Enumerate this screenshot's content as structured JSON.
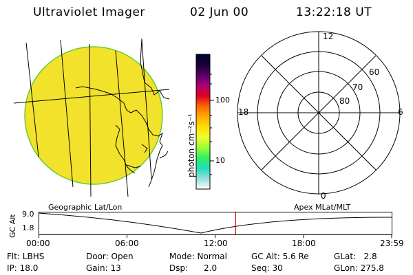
{
  "header": {
    "instrument": "Ultraviolet Imager",
    "date": "02 Jun 00",
    "time": "13:22:18 UT"
  },
  "colorbar": {
    "unit_label": "photon cm⁻²s⁻¹",
    "ticks": [
      "100",
      "10"
    ],
    "gradient": [
      "#000033",
      "#1a0033",
      "#550066",
      "#aa0077",
      "#dd0022",
      "#ff6600",
      "#ffaa00",
      "#ffdd00",
      "#eeff33",
      "#99ff33",
      "#33ee66",
      "#22ddbb",
      "#99dddd",
      "#ffffff"
    ]
  },
  "polar": {
    "mlt_labels": {
      "top": "12",
      "bottom": "0",
      "left": "18",
      "right": "6"
    },
    "lat_labels": [
      "60",
      "70",
      "80"
    ]
  },
  "altitude": {
    "left_label": "Geographic Lat/Lon",
    "right_label": "Apex MLat/MLT",
    "axis_label": "GC Alt",
    "y_ticks": [
      "9.0",
      "1.8"
    ],
    "x_ticks": [
      "00:00",
      "06:00",
      "12:00",
      "18:00",
      "23:59"
    ],
    "marker_time_hours": 13.3717
  },
  "info": {
    "flt": "Flt: LBHS",
    "door": "Door: Open",
    "mode": "Mode: Normal",
    "gc_alt": "GC Alt: 5.6 Re",
    "glat": "GLat:   2.8",
    "ip": "IP: 18.0",
    "gain": "Gain: 13",
    "dsp": "Dsp:      2.0",
    "seq": "Seq: 30",
    "glon": "GLon: 275.8"
  },
  "colors": {
    "map_fill": "#f2e32a",
    "disk_edge": "#66cc33",
    "marker": "#dd0000"
  }
}
